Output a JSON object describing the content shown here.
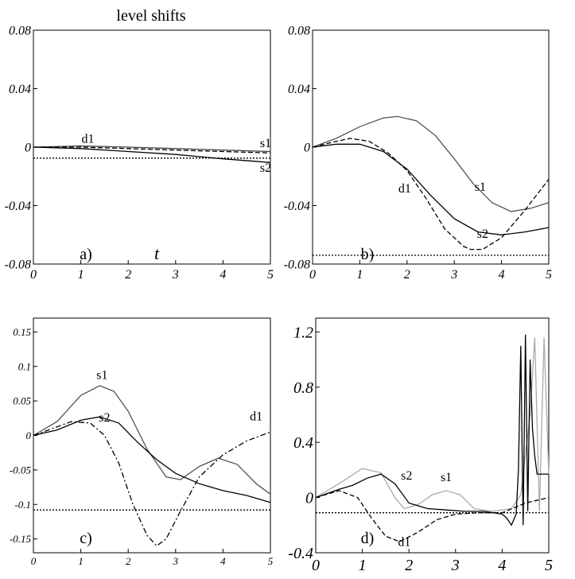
{
  "figure_title": "level shifts",
  "chart_data": [
    {
      "id": "a",
      "type": "line",
      "panel_label": "a)",
      "xlabel": "t",
      "xlim": [
        0,
        5
      ],
      "ylim": [
        -0.08,
        0.08
      ],
      "xticks": [
        "0",
        "1",
        "2",
        "3",
        "4",
        "5"
      ],
      "yticks": [
        {
          "v": 0.08,
          "t": "0.08"
        },
        {
          "v": 0.04,
          "t": "0.04"
        },
        {
          "v": 0,
          "t": "0"
        },
        {
          "v": -0.04,
          "t": "-0.04"
        },
        {
          "v": -0.08,
          "t": "-0.08"
        }
      ],
      "series": [
        {
          "name": "s1",
          "style": "solid",
          "color": "#444444",
          "points": [
            [
              0,
              0
            ],
            [
              1,
              0.0008
            ],
            [
              2,
              0
            ],
            [
              3,
              -0.001
            ],
            [
              4,
              -0.002
            ],
            [
              5,
              -0.003
            ]
          ]
        },
        {
          "name": "s2",
          "style": "solid",
          "color": "#000000",
          "points": [
            [
              0,
              0
            ],
            [
              1,
              -0.001
            ],
            [
              2,
              -0.003
            ],
            [
              3,
              -0.005
            ],
            [
              4,
              -0.008
            ],
            [
              5,
              -0.0105
            ]
          ]
        },
        {
          "name": "d1",
          "style": "dashed",
          "color": "#000000",
          "points": [
            [
              0,
              0
            ],
            [
              1,
              0
            ],
            [
              2,
              -0.001
            ],
            [
              3,
              -0.002
            ],
            [
              4,
              -0.003
            ],
            [
              5,
              -0.004
            ]
          ]
        },
        {
          "name": "",
          "style": "dotted",
          "color": "#000000",
          "points": [
            [
              0,
              -0.0075
            ],
            [
              5,
              -0.0075
            ]
          ]
        }
      ],
      "labels": [
        {
          "text": "d1",
          "x": 1.15,
          "y": 0.003
        },
        {
          "text": "s1",
          "x": 4.9,
          "y": 0.0
        },
        {
          "text": "s2",
          "x": 4.9,
          "y": -0.017
        }
      ]
    },
    {
      "id": "b",
      "type": "line",
      "panel_label": "b)",
      "xlabel": "",
      "xlim": [
        0,
        5
      ],
      "ylim": [
        -0.08,
        0.08
      ],
      "xticks": [
        "0",
        "1",
        "2",
        "3",
        "4",
        "5"
      ],
      "yticks": [
        {
          "v": 0.08,
          "t": "0.08"
        },
        {
          "v": 0.04,
          "t": "0.04"
        },
        {
          "v": 0,
          "t": "0"
        },
        {
          "v": -0.04,
          "t": "-0.04"
        },
        {
          "v": -0.08,
          "t": "-0.08"
        }
      ],
      "series": [
        {
          "name": "s1",
          "style": "solid",
          "color": "#555555",
          "points": [
            [
              0,
              0
            ],
            [
              0.5,
              0.006
            ],
            [
              1,
              0.014
            ],
            [
              1.5,
              0.02
            ],
            [
              1.8,
              0.021
            ],
            [
              2.2,
              0.018
            ],
            [
              2.6,
              0.008
            ],
            [
              3,
              -0.008
            ],
            [
              3.4,
              -0.025
            ],
            [
              3.8,
              -0.038
            ],
            [
              4.2,
              -0.044
            ],
            [
              4.6,
              -0.042
            ],
            [
              5,
              -0.038
            ]
          ]
        },
        {
          "name": "s2",
          "style": "solid",
          "color": "#000000",
          "points": [
            [
              0,
              0
            ],
            [
              0.5,
              0.002
            ],
            [
              1,
              0.002
            ],
            [
              1.5,
              -0.003
            ],
            [
              2,
              -0.015
            ],
            [
              2.5,
              -0.033
            ],
            [
              3,
              -0.049
            ],
            [
              3.5,
              -0.058
            ],
            [
              4,
              -0.06
            ],
            [
              4.5,
              -0.058
            ],
            [
              5,
              -0.055
            ]
          ]
        },
        {
          "name": "d1",
          "style": "dashed",
          "color": "#000000",
          "points": [
            [
              0,
              0
            ],
            [
              0.5,
              0.004
            ],
            [
              0.8,
              0.006
            ],
            [
              1.2,
              0.004
            ],
            [
              1.6,
              -0.004
            ],
            [
              2,
              -0.016
            ],
            [
              2.4,
              -0.035
            ],
            [
              2.8,
              -0.056
            ],
            [
              3.2,
              -0.068
            ],
            [
              3.35,
              -0.07
            ],
            [
              3.6,
              -0.07
            ],
            [
              4,
              -0.062
            ],
            [
              4.5,
              -0.043
            ],
            [
              5,
              -0.022
            ]
          ]
        },
        {
          "name": "",
          "style": "dotted",
          "color": "#000000",
          "points": [
            [
              0,
              -0.074
            ],
            [
              5,
              -0.074
            ]
          ]
        }
      ],
      "labels": [
        {
          "text": "s1",
          "x": 3.55,
          "y": -0.03
        },
        {
          "text": "d1",
          "x": 1.95,
          "y": -0.031
        },
        {
          "text": "s2",
          "x": 3.6,
          "y": -0.062
        }
      ]
    },
    {
      "id": "c",
      "type": "line",
      "panel_label": "c)",
      "xlabel": "",
      "xlim": [
        0,
        5
      ],
      "ylim": [
        -0.17,
        0.17
      ],
      "xticks": [
        "0",
        "1",
        "2",
        "3",
        "4",
        "5"
      ],
      "yticks": [
        {
          "v": 0.15,
          "t": "0.15"
        },
        {
          "v": 0.1,
          "t": "0.1"
        },
        {
          "v": 0.05,
          "t": "0.05"
        },
        {
          "v": 0,
          "t": "0"
        },
        {
          "v": -0.05,
          "t": "-0.05"
        },
        {
          "v": -0.1,
          "t": "-0.1"
        },
        {
          "v": -0.15,
          "t": "-0.15"
        }
      ],
      "series": [
        {
          "name": "s1",
          "style": "solid",
          "color": "#555555",
          "points": [
            [
              0,
              0
            ],
            [
              0.5,
              0.02
            ],
            [
              1,
              0.058
            ],
            [
              1.4,
              0.072
            ],
            [
              1.7,
              0.064
            ],
            [
              2,
              0.035
            ],
            [
              2.4,
              -0.02
            ],
            [
              2.8,
              -0.06
            ],
            [
              3.1,
              -0.064
            ],
            [
              3.5,
              -0.045
            ],
            [
              3.9,
              -0.033
            ],
            [
              4.3,
              -0.042
            ],
            [
              4.7,
              -0.07
            ],
            [
              5,
              -0.085
            ]
          ]
        },
        {
          "name": "s2",
          "style": "solid",
          "color": "#000000",
          "points": [
            [
              0,
              0
            ],
            [
              0.5,
              0.008
            ],
            [
              1,
              0.022
            ],
            [
              1.4,
              0.027
            ],
            [
              1.8,
              0.018
            ],
            [
              2.2,
              -0.01
            ],
            [
              2.6,
              -0.035
            ],
            [
              3,
              -0.055
            ],
            [
              3.5,
              -0.07
            ],
            [
              4,
              -0.08
            ],
            [
              4.5,
              -0.087
            ],
            [
              5,
              -0.097
            ]
          ]
        },
        {
          "name": "d1",
          "style": "dashdot",
          "color": "#000000",
          "points": [
            [
              0,
              0
            ],
            [
              0.4,
              0.01
            ],
            [
              0.8,
              0.02
            ],
            [
              1.2,
              0.018
            ],
            [
              1.5,
              0.0
            ],
            [
              1.8,
              -0.04
            ],
            [
              2.1,
              -0.1
            ],
            [
              2.4,
              -0.145
            ],
            [
              2.6,
              -0.16
            ],
            [
              2.8,
              -0.15
            ],
            [
              3.1,
              -0.11
            ],
            [
              3.5,
              -0.06
            ],
            [
              4,
              -0.028
            ],
            [
              4.5,
              -0.008
            ],
            [
              5,
              0.005
            ]
          ]
        },
        {
          "name": "",
          "style": "dotted",
          "color": "#000000",
          "points": [
            [
              0,
              -0.108
            ],
            [
              5,
              -0.108
            ]
          ]
        }
      ],
      "labels": [
        {
          "text": "s1",
          "x": 1.45,
          "y": 0.082
        },
        {
          "text": "s2",
          "x": 1.5,
          "y": 0.02
        },
        {
          "text": "d1",
          "x": 4.7,
          "y": 0.022
        }
      ]
    },
    {
      "id": "d",
      "type": "line",
      "panel_label": "d)",
      "xlabel": "",
      "xlim": [
        0,
        5
      ],
      "ylim": [
        -0.4,
        1.3
      ],
      "xticks": [
        "0",
        "1",
        "2",
        "3",
        "4",
        "5"
      ],
      "yticks": [
        {
          "v": 1.2,
          "t": "1.2"
        },
        {
          "v": 0.8,
          "t": "0.8"
        },
        {
          "v": 0.4,
          "t": "0.4"
        },
        {
          "v": 0,
          "t": "0"
        },
        {
          "v": -0.4,
          "t": "-0.4"
        }
      ],
      "series": [
        {
          "name": "s1",
          "style": "solid",
          "color": "#aaaaaa",
          "points": [
            [
              0,
              0
            ],
            [
              0.5,
              0.1
            ],
            [
              1,
              0.21
            ],
            [
              1.4,
              0.18
            ],
            [
              1.7,
              0.0
            ],
            [
              1.9,
              -0.08
            ],
            [
              2.2,
              -0.05
            ],
            [
              2.5,
              0.02
            ],
            [
              2.8,
              0.05
            ],
            [
              3.1,
              0.02
            ],
            [
              3.4,
              -0.08
            ],
            [
              3.8,
              -0.1
            ],
            [
              4,
              -0.09
            ],
            [
              4.2,
              -0.08
            ],
            [
              4.4,
              0.02
            ],
            [
              4.6,
              0.6
            ],
            [
              4.7,
              1.16
            ],
            [
              4.8,
              -0.1
            ],
            [
              4.9,
              1.16
            ],
            [
              5,
              0.17
            ]
          ]
        },
        {
          "name": "s2",
          "style": "solid",
          "color": "#000000",
          "points": [
            [
              0,
              0
            ],
            [
              0.5,
              0.06
            ],
            [
              0.8,
              0.09
            ],
            [
              1.1,
              0.14
            ],
            [
              1.4,
              0.17
            ],
            [
              1.7,
              0.1
            ],
            [
              2,
              -0.04
            ],
            [
              2.4,
              -0.08
            ],
            [
              2.8,
              -0.09
            ],
            [
              3.2,
              -0.1
            ],
            [
              3.6,
              -0.1
            ],
            [
              4,
              -0.12
            ],
            [
              4.1,
              -0.15
            ],
            [
              4.2,
              -0.2
            ],
            [
              4.3,
              -0.12
            ],
            [
              4.35,
              0.2
            ],
            [
              4.4,
              1.1
            ],
            [
              4.45,
              -0.2
            ],
            [
              4.5,
              1.18
            ],
            [
              4.55,
              -0.1
            ],
            [
              4.6,
              1.0
            ],
            [
              4.65,
              0.5
            ],
            [
              4.7,
              0.3
            ],
            [
              4.75,
              0.17
            ],
            [
              5,
              0.17
            ]
          ]
        },
        {
          "name": "d1",
          "style": "dashed",
          "color": "#000000",
          "points": [
            [
              0,
              0
            ],
            [
              0.5,
              0.05
            ],
            [
              0.9,
              0.0
            ],
            [
              1.2,
              -0.15
            ],
            [
              1.5,
              -0.28
            ],
            [
              1.8,
              -0.32
            ],
            [
              2.2,
              -0.25
            ],
            [
              2.6,
              -0.16
            ],
            [
              3,
              -0.12
            ],
            [
              3.5,
              -0.11
            ],
            [
              4,
              -0.11
            ],
            [
              4.5,
              -0.04
            ],
            [
              5,
              0.0
            ]
          ]
        },
        {
          "name": "",
          "style": "dotted",
          "color": "#000000",
          "points": [
            [
              0,
              -0.11
            ],
            [
              5,
              -0.11
            ]
          ]
        }
      ],
      "labels": [
        {
          "text": "s2",
          "x": 1.95,
          "y": 0.13
        },
        {
          "text": "s1",
          "x": 2.8,
          "y": 0.12
        },
        {
          "text": "d1",
          "x": 1.9,
          "y": -0.35
        }
      ]
    }
  ]
}
